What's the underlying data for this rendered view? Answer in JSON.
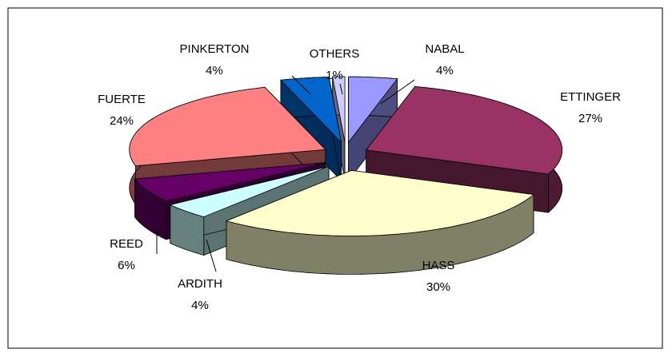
{
  "chart_data": {
    "type": "pie3d",
    "categories": [
      "NABAL",
      "ETTINGER",
      "HASS",
      "ARDITH",
      "REED",
      "FUERTE",
      "PINKERTON",
      "OTHERS"
    ],
    "values": [
      4,
      27,
      30,
      4,
      6,
      24,
      4,
      1
    ],
    "value_labels": [
      "4%",
      "27%",
      "30%",
      "4%",
      "6%",
      "24%",
      "4%",
      "1%"
    ],
    "colors": [
      "#9999ff",
      "#993366",
      "#ffffcc",
      "#ccffff",
      "#660066",
      "#ff8080",
      "#0066cc",
      "#ccccff"
    ]
  }
}
